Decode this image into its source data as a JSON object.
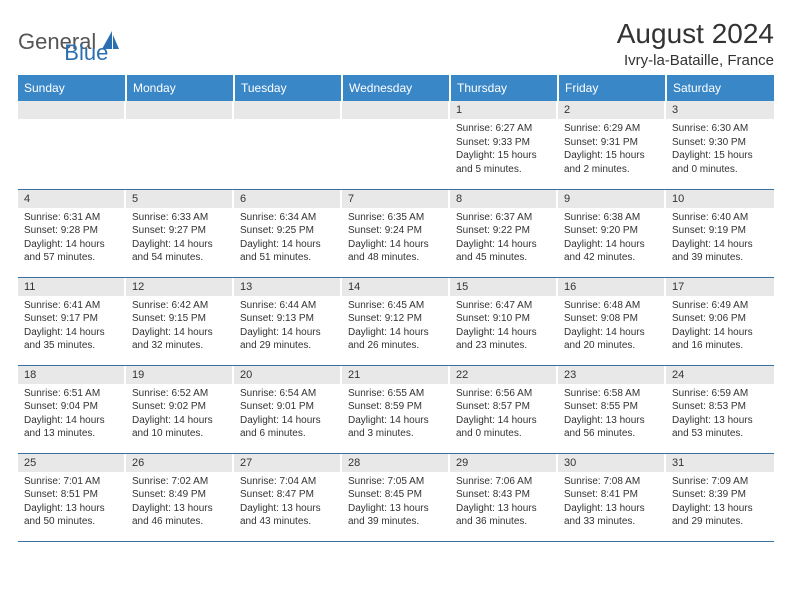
{
  "logo": {
    "part1": "General",
    "part2": "Blue"
  },
  "title": "August 2024",
  "subtitle": "Ivry-la-Bataille, France",
  "colors": {
    "header_bg": "#3a87c8",
    "header_text": "#ffffff",
    "daynum_bg": "#e8e8e8",
    "row_divider": "#3a6f9e",
    "logo_blue": "#2c6fb0",
    "logo_gray": "#555555",
    "text": "#333333",
    "page_bg": "#ffffff"
  },
  "weekdays": [
    "Sunday",
    "Monday",
    "Tuesday",
    "Wednesday",
    "Thursday",
    "Friday",
    "Saturday"
  ],
  "cells": [
    [
      {
        "empty": true
      },
      {
        "empty": true
      },
      {
        "empty": true
      },
      {
        "empty": true
      },
      {
        "num": "1",
        "sunrise": "Sunrise: 6:27 AM",
        "sunset": "Sunset: 9:33 PM",
        "daylight": "Daylight: 15 hours and 5 minutes."
      },
      {
        "num": "2",
        "sunrise": "Sunrise: 6:29 AM",
        "sunset": "Sunset: 9:31 PM",
        "daylight": "Daylight: 15 hours and 2 minutes."
      },
      {
        "num": "3",
        "sunrise": "Sunrise: 6:30 AM",
        "sunset": "Sunset: 9:30 PM",
        "daylight": "Daylight: 15 hours and 0 minutes."
      }
    ],
    [
      {
        "num": "4",
        "sunrise": "Sunrise: 6:31 AM",
        "sunset": "Sunset: 9:28 PM",
        "daylight": "Daylight: 14 hours and 57 minutes."
      },
      {
        "num": "5",
        "sunrise": "Sunrise: 6:33 AM",
        "sunset": "Sunset: 9:27 PM",
        "daylight": "Daylight: 14 hours and 54 minutes."
      },
      {
        "num": "6",
        "sunrise": "Sunrise: 6:34 AM",
        "sunset": "Sunset: 9:25 PM",
        "daylight": "Daylight: 14 hours and 51 minutes."
      },
      {
        "num": "7",
        "sunrise": "Sunrise: 6:35 AM",
        "sunset": "Sunset: 9:24 PM",
        "daylight": "Daylight: 14 hours and 48 minutes."
      },
      {
        "num": "8",
        "sunrise": "Sunrise: 6:37 AM",
        "sunset": "Sunset: 9:22 PM",
        "daylight": "Daylight: 14 hours and 45 minutes."
      },
      {
        "num": "9",
        "sunrise": "Sunrise: 6:38 AM",
        "sunset": "Sunset: 9:20 PM",
        "daylight": "Daylight: 14 hours and 42 minutes."
      },
      {
        "num": "10",
        "sunrise": "Sunrise: 6:40 AM",
        "sunset": "Sunset: 9:19 PM",
        "daylight": "Daylight: 14 hours and 39 minutes."
      }
    ],
    [
      {
        "num": "11",
        "sunrise": "Sunrise: 6:41 AM",
        "sunset": "Sunset: 9:17 PM",
        "daylight": "Daylight: 14 hours and 35 minutes."
      },
      {
        "num": "12",
        "sunrise": "Sunrise: 6:42 AM",
        "sunset": "Sunset: 9:15 PM",
        "daylight": "Daylight: 14 hours and 32 minutes."
      },
      {
        "num": "13",
        "sunrise": "Sunrise: 6:44 AM",
        "sunset": "Sunset: 9:13 PM",
        "daylight": "Daylight: 14 hours and 29 minutes."
      },
      {
        "num": "14",
        "sunrise": "Sunrise: 6:45 AM",
        "sunset": "Sunset: 9:12 PM",
        "daylight": "Daylight: 14 hours and 26 minutes."
      },
      {
        "num": "15",
        "sunrise": "Sunrise: 6:47 AM",
        "sunset": "Sunset: 9:10 PM",
        "daylight": "Daylight: 14 hours and 23 minutes."
      },
      {
        "num": "16",
        "sunrise": "Sunrise: 6:48 AM",
        "sunset": "Sunset: 9:08 PM",
        "daylight": "Daylight: 14 hours and 20 minutes."
      },
      {
        "num": "17",
        "sunrise": "Sunrise: 6:49 AM",
        "sunset": "Sunset: 9:06 PM",
        "daylight": "Daylight: 14 hours and 16 minutes."
      }
    ],
    [
      {
        "num": "18",
        "sunrise": "Sunrise: 6:51 AM",
        "sunset": "Sunset: 9:04 PM",
        "daylight": "Daylight: 14 hours and 13 minutes."
      },
      {
        "num": "19",
        "sunrise": "Sunrise: 6:52 AM",
        "sunset": "Sunset: 9:02 PM",
        "daylight": "Daylight: 14 hours and 10 minutes."
      },
      {
        "num": "20",
        "sunrise": "Sunrise: 6:54 AM",
        "sunset": "Sunset: 9:01 PM",
        "daylight": "Daylight: 14 hours and 6 minutes."
      },
      {
        "num": "21",
        "sunrise": "Sunrise: 6:55 AM",
        "sunset": "Sunset: 8:59 PM",
        "daylight": "Daylight: 14 hours and 3 minutes."
      },
      {
        "num": "22",
        "sunrise": "Sunrise: 6:56 AM",
        "sunset": "Sunset: 8:57 PM",
        "daylight": "Daylight: 14 hours and 0 minutes."
      },
      {
        "num": "23",
        "sunrise": "Sunrise: 6:58 AM",
        "sunset": "Sunset: 8:55 PM",
        "daylight": "Daylight: 13 hours and 56 minutes."
      },
      {
        "num": "24",
        "sunrise": "Sunrise: 6:59 AM",
        "sunset": "Sunset: 8:53 PM",
        "daylight": "Daylight: 13 hours and 53 minutes."
      }
    ],
    [
      {
        "num": "25",
        "sunrise": "Sunrise: 7:01 AM",
        "sunset": "Sunset: 8:51 PM",
        "daylight": "Daylight: 13 hours and 50 minutes."
      },
      {
        "num": "26",
        "sunrise": "Sunrise: 7:02 AM",
        "sunset": "Sunset: 8:49 PM",
        "daylight": "Daylight: 13 hours and 46 minutes."
      },
      {
        "num": "27",
        "sunrise": "Sunrise: 7:04 AM",
        "sunset": "Sunset: 8:47 PM",
        "daylight": "Daylight: 13 hours and 43 minutes."
      },
      {
        "num": "28",
        "sunrise": "Sunrise: 7:05 AM",
        "sunset": "Sunset: 8:45 PM",
        "daylight": "Daylight: 13 hours and 39 minutes."
      },
      {
        "num": "29",
        "sunrise": "Sunrise: 7:06 AM",
        "sunset": "Sunset: 8:43 PM",
        "daylight": "Daylight: 13 hours and 36 minutes."
      },
      {
        "num": "30",
        "sunrise": "Sunrise: 7:08 AM",
        "sunset": "Sunset: 8:41 PM",
        "daylight": "Daylight: 13 hours and 33 minutes."
      },
      {
        "num": "31",
        "sunrise": "Sunrise: 7:09 AM",
        "sunset": "Sunset: 8:39 PM",
        "daylight": "Daylight: 13 hours and 29 minutes."
      }
    ]
  ]
}
